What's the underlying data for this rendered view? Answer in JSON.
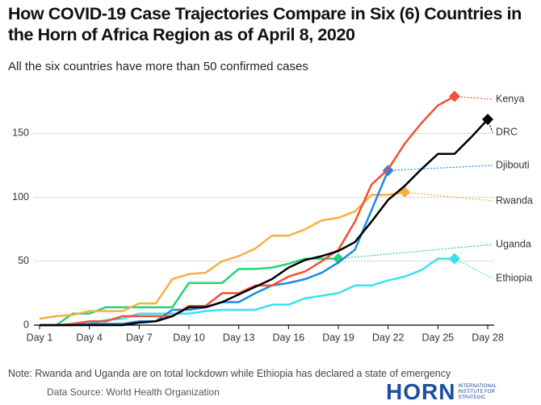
{
  "chart_data": {
    "type": "line",
    "title": "How COVID-19 Case Trajectories Compare in Six (6) Countries in the Horn of Africa Region as of April 8, 2020",
    "subtitle": "All the six countries have more than 50 confirmed cases",
    "note": "Note: Rwanda and Uganda are on total lockdown while Ethiopia has declared a state of emergency",
    "source": "Data Source: World Health Organization",
    "logo": {
      "text": "HORN",
      "tagline": [
        "INTERNATIONAL",
        "INSTITUTE FOR",
        "STRATEGIC"
      ]
    },
    "categories": [
      "Day 1",
      null,
      null,
      "Day 4",
      null,
      null,
      "Day 7",
      null,
      null,
      "Day 10",
      null,
      null,
      "Day 13",
      null,
      null,
      "Day 16",
      null,
      null,
      "Day 19",
      null,
      null,
      "Day 22",
      null,
      null,
      "Day 25",
      null,
      null,
      "Day 28"
    ],
    "ylim": [
      0,
      185
    ],
    "yticks": [
      0,
      50,
      100,
      150
    ],
    "grid": true,
    "series": [
      {
        "name": "Kenya",
        "color": "#ef5132",
        "values": [
          0,
          0,
          1,
          3,
          3,
          7,
          7,
          7,
          7,
          15,
          15,
          25,
          25,
          31,
          31,
          38,
          42,
          50,
          59,
          81,
          110,
          122,
          142,
          158,
          172,
          179,
          null,
          null
        ]
      },
      {
        "name": "DRC",
        "color": "#000000",
        "values": [
          0,
          0,
          0,
          0,
          0,
          0,
          2,
          3,
          7,
          14,
          14,
          18,
          24,
          30,
          36,
          45,
          51,
          54,
          58,
          65,
          81,
          98,
          109,
          122,
          134,
          134,
          147,
          161
        ]
      },
      {
        "name": "Djibouti",
        "color": "#1e88e5",
        "values": [
          0,
          0,
          0,
          1,
          1,
          1,
          3,
          3,
          12,
          12,
          14,
          18,
          18,
          25,
          31,
          33,
          36,
          41,
          49,
          59,
          90,
          121,
          null,
          null,
          null,
          null,
          null,
          null
        ]
      },
      {
        "name": "Rwanda",
        "color": "#f6b042",
        "values": [
          5,
          7,
          8,
          11,
          11,
          11,
          17,
          17,
          36,
          40,
          41,
          50,
          54,
          60,
          70,
          70,
          75,
          82,
          84,
          89,
          102,
          102,
          104,
          null,
          null,
          null,
          null,
          null
        ]
      },
      {
        "name": "Uganda",
        "color": "#22d37a",
        "values": [
          0,
          0,
          9,
          9,
          14,
          14,
          14,
          14,
          14,
          33,
          33,
          33,
          44,
          44,
          45,
          48,
          52,
          52,
          52,
          null,
          null,
          null,
          null,
          null,
          null,
          null,
          null,
          null
        ]
      },
      {
        "name": "Ethiopia",
        "color": "#35e3ef",
        "values": [
          0,
          0,
          0,
          1,
          4,
          5,
          9,
          9,
          9,
          9,
          11,
          12,
          12,
          12,
          16,
          16,
          21,
          23,
          25,
          31,
          31,
          35,
          38,
          43,
          52,
          52,
          null,
          null
        ]
      }
    ]
  }
}
